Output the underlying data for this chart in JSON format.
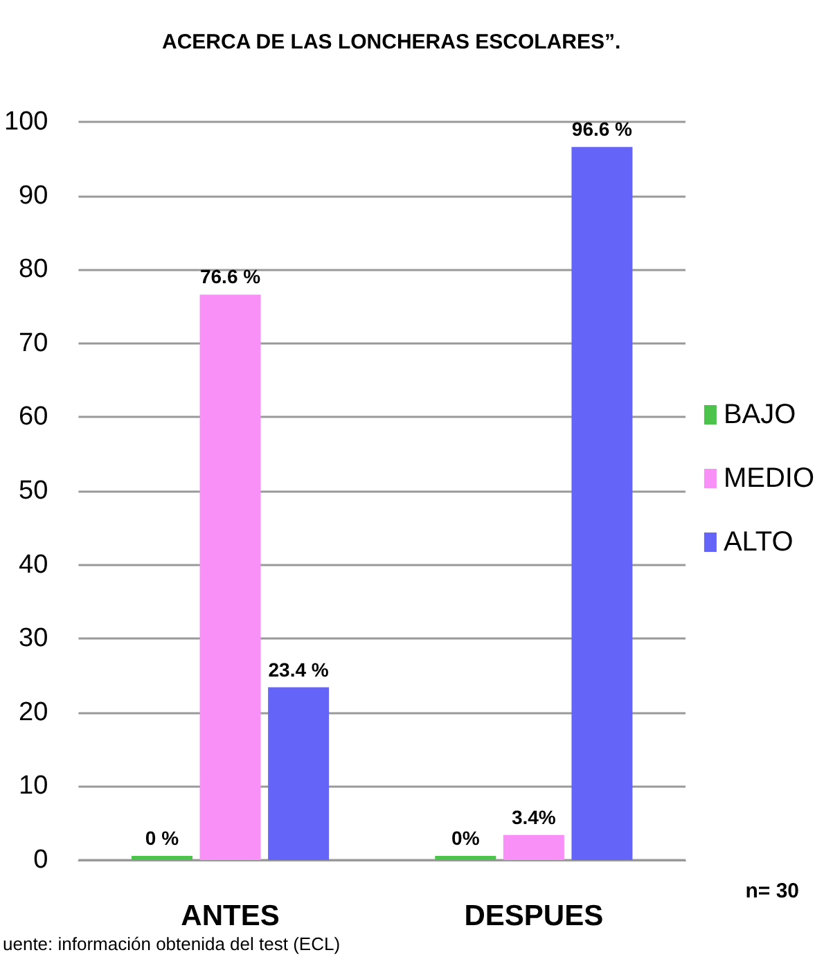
{
  "chart_data": {
    "type": "bar",
    "title": "ACERCA DE LAS LONCHERAS ESCOLARES”.",
    "categories": [
      "ANTES",
      "DESPUES"
    ],
    "series": [
      {
        "name": "BAJO",
        "color": "#4cc44c",
        "values": [
          0,
          0
        ],
        "value_labels": [
          "0 %",
          "0%"
        ]
      },
      {
        "name": "MEDIO",
        "color": "#f890f8",
        "values": [
          76.6,
          3.4
        ],
        "value_labels": [
          "76.6 %",
          "3.4%"
        ]
      },
      {
        "name": "ALTO",
        "color": "#6464f8",
        "values": [
          23.4,
          96.6
        ],
        "value_labels": [
          "23.4 %",
          "96.6 %"
        ]
      }
    ],
    "ylim": [
      0,
      100
    ],
    "yticks": [
      0,
      10,
      20,
      30,
      40,
      50,
      60,
      70,
      80,
      90,
      100
    ],
    "grid": "y",
    "legend": "right",
    "annotations": [
      "n= 30",
      "uente: información obtenida del test (ECL)"
    ]
  }
}
